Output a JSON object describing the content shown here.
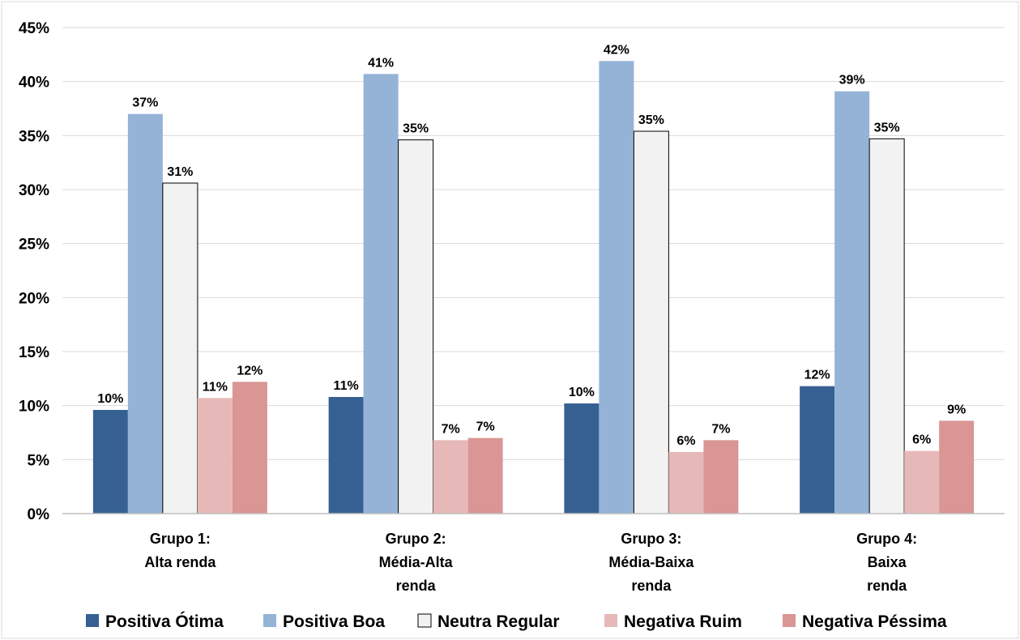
{
  "chart_data": {
    "type": "bar",
    "title": "",
    "xlabel": "",
    "ylabel": "",
    "ylim": [
      0,
      45
    ],
    "y_ticks": [
      0,
      5,
      10,
      15,
      20,
      25,
      30,
      35,
      40,
      45
    ],
    "y_tick_format": "percent",
    "grid": true,
    "legend_position": "bottom",
    "categories": [
      [
        "Grupo 1:",
        "Alta renda"
      ],
      [
        "Grupo 2:",
        "Média-Alta",
        "renda"
      ],
      [
        "Grupo 3:",
        "Média-Baixa",
        "renda"
      ],
      [
        "Grupo 4:",
        "Baixa",
        "renda"
      ]
    ],
    "series": [
      {
        "name": "Positiva Ótima",
        "color": "#376092",
        "values": [
          9.6,
          10.8,
          10.2,
          11.8
        ],
        "labels": [
          "10%",
          "11%",
          "10%",
          "12%"
        ]
      },
      {
        "name": "Positiva Boa",
        "color": "#95B3D7",
        "values": [
          37.0,
          40.7,
          41.9,
          39.1
        ],
        "labels": [
          "37%",
          "41%",
          "42%",
          "39%"
        ]
      },
      {
        "name": "Neutra Regular",
        "color": "#F2F2F2",
        "stroke": "#000000",
        "values": [
          30.6,
          34.6,
          35.4,
          34.7
        ],
        "labels": [
          "31%",
          "35%",
          "35%",
          "35%"
        ]
      },
      {
        "name": "Negativa Ruim",
        "color": "#E6B9B8",
        "values": [
          10.7,
          6.8,
          5.7,
          5.8
        ],
        "labels": [
          "11%",
          "7%",
          "6%",
          "6%"
        ]
      },
      {
        "name": "Negativa Péssima",
        "color": "#D99694",
        "values": [
          12.2,
          7.0,
          6.8,
          8.6
        ],
        "labels": [
          "12%",
          "7%",
          "7%",
          "9%"
        ]
      }
    ]
  }
}
